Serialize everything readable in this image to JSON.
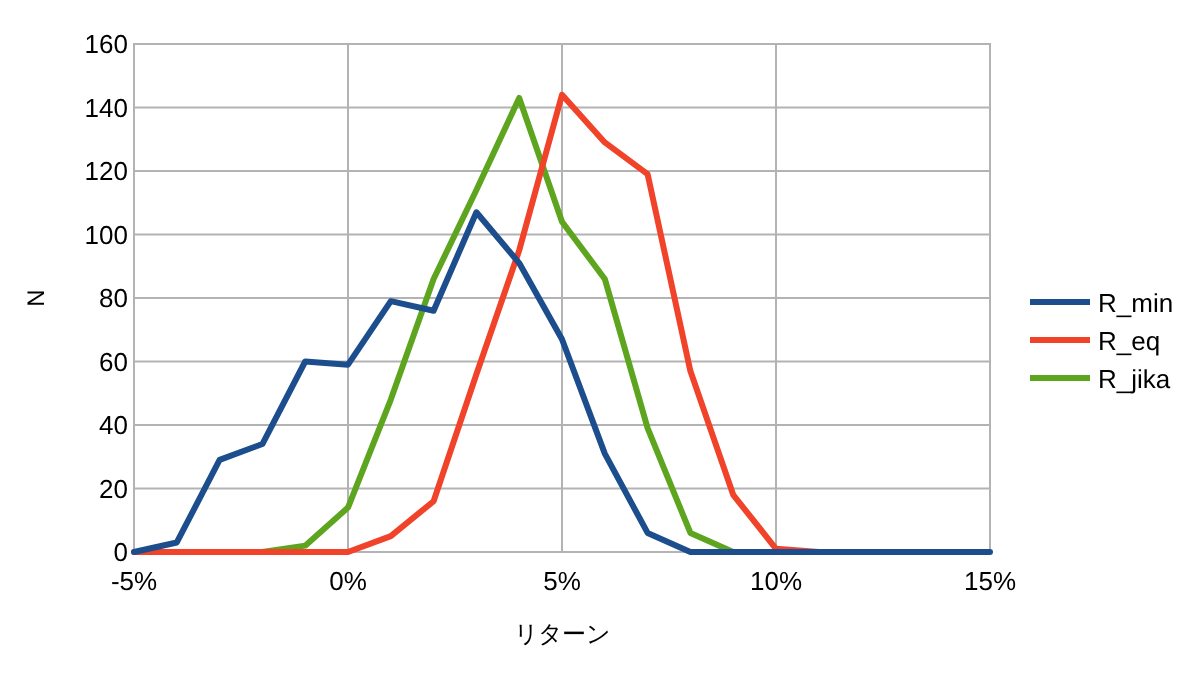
{
  "chart_data": {
    "type": "line",
    "xlabel": "リターン",
    "ylabel": "N",
    "x": [
      -5,
      -4,
      -3,
      -2,
      -1,
      0,
      1,
      2,
      3,
      4,
      5,
      6,
      7,
      8,
      9,
      10,
      11,
      12,
      13,
      14,
      15
    ],
    "series": [
      {
        "name": "R_min",
        "color": "#1c4d8c",
        "values": [
          0,
          3,
          29,
          34,
          60,
          59,
          79,
          76,
          107,
          91,
          67,
          31,
          6,
          0,
          0,
          0,
          0,
          0,
          0,
          0,
          0
        ]
      },
      {
        "name": "R_eq",
        "color": "#f0432a",
        "values": [
          0,
          0,
          0,
          0,
          0,
          0,
          5,
          16,
          56,
          95,
          144,
          129,
          119,
          57,
          18,
          1,
          0,
          null,
          null,
          null,
          null
        ]
      },
      {
        "name": "R_jika",
        "color": "#5ea51f",
        "values": [
          null,
          null,
          null,
          0,
          2,
          14,
          48,
          86,
          114,
          143,
          104,
          86,
          39,
          6,
          0,
          null,
          null,
          null,
          null,
          null,
          null
        ]
      }
    ],
    "xlim": [
      -5,
      15
    ],
    "ylim": [
      0,
      160
    ],
    "xticks": [
      {
        "value": -5,
        "label": "-5%"
      },
      {
        "value": 0,
        "label": "0%"
      },
      {
        "value": 5,
        "label": "5%"
      },
      {
        "value": 10,
        "label": "10%"
      },
      {
        "value": 15,
        "label": "15%"
      }
    ],
    "yticks": [
      0,
      20,
      40,
      60,
      80,
      100,
      120,
      140,
      160
    ],
    "grid": true,
    "legend": "right",
    "marker": "none",
    "line_style": "solid"
  }
}
